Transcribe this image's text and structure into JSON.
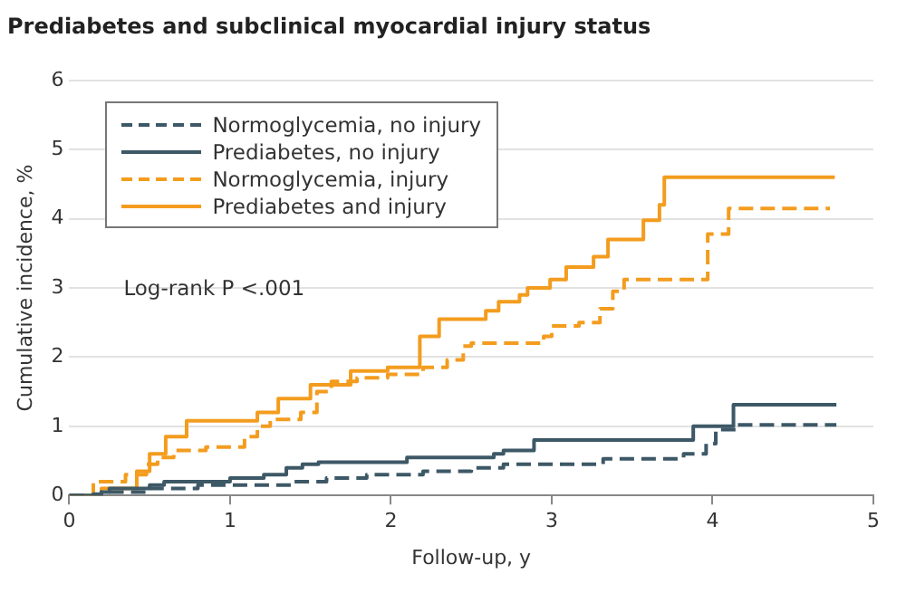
{
  "chart_data": {
    "type": "step",
    "title": "Prediabetes and subclinical myocardial injury status",
    "xlabel": "Follow-up, y",
    "ylabel": "Cumulative incidence, %",
    "xlim": [
      0,
      5
    ],
    "xticks": [
      0,
      1,
      2,
      3,
      4,
      5
    ],
    "ylim": [
      0,
      6
    ],
    "yticks": [
      0,
      1,
      2,
      3,
      4,
      5,
      6
    ],
    "grid": "y",
    "legend": "top left",
    "annotations": [
      "Log-rank P <.001"
    ],
    "series": [
      {
        "name": "Normoglycemia, no injury",
        "color": "#3d5866",
        "line_style": "dashed",
        "x": [
          0,
          0.15,
          0.2,
          0.5,
          0.8,
          1.4,
          1.6,
          1.85,
          2.2,
          2.5,
          2.7,
          3.32,
          3.82,
          3.96,
          4.02,
          4.15,
          4.77
        ],
        "values": [
          0,
          0.02,
          0.05,
          0.1,
          0.15,
          0.2,
          0.25,
          0.3,
          0.35,
          0.4,
          0.45,
          0.53,
          0.6,
          0.75,
          0.95,
          1.02,
          1.02
        ]
      },
      {
        "name": "Prediabetes, no injury",
        "color": "#3d5866",
        "line_style": "solid",
        "x": [
          0,
          0.2,
          0.25,
          0.5,
          0.59,
          1.0,
          1.21,
          1.35,
          1.45,
          1.55,
          2.1,
          2.64,
          2.7,
          2.89,
          3.88,
          4.13,
          4.77
        ],
        "values": [
          0,
          0.05,
          0.1,
          0.15,
          0.2,
          0.25,
          0.3,
          0.4,
          0.45,
          0.48,
          0.55,
          0.6,
          0.65,
          0.8,
          1.0,
          1.31,
          1.31
        ]
      },
      {
        "name": "Normoglycemia, injury",
        "color": "#f39c1e",
        "line_style": "dashed",
        "x": [
          0,
          0.15,
          0.35,
          0.48,
          0.55,
          0.65,
          0.85,
          1.09,
          1.17,
          1.25,
          1.44,
          1.54,
          1.63,
          1.79,
          1.98,
          2.2,
          2.35,
          2.45,
          2.5,
          2.95,
          3.0,
          3.17,
          3.3,
          3.38,
          3.45,
          3.97,
          4.1,
          4.73
        ],
        "values": [
          0,
          0.2,
          0.3,
          0.45,
          0.55,
          0.65,
          0.7,
          0.85,
          1.0,
          1.1,
          1.2,
          1.5,
          1.65,
          1.7,
          1.75,
          1.85,
          1.96,
          2.16,
          2.2,
          2.3,
          2.45,
          2.5,
          2.7,
          2.95,
          3.12,
          3.78,
          4.15,
          4.15
        ]
      },
      {
        "name": "Prediabetes and injury",
        "color": "#f39c1e",
        "line_style": "solid",
        "x": [
          0,
          0.2,
          0.42,
          0.5,
          0.6,
          0.73,
          1.17,
          1.3,
          1.5,
          1.75,
          1.98,
          2.18,
          2.3,
          2.59,
          2.67,
          2.8,
          2.85,
          2.99,
          3.09,
          3.26,
          3.35,
          3.57,
          3.67,
          3.7,
          4.76
        ],
        "values": [
          0,
          0.1,
          0.35,
          0.6,
          0.85,
          1.08,
          1.2,
          1.4,
          1.6,
          1.8,
          1.85,
          2.3,
          2.55,
          2.67,
          2.8,
          2.9,
          3.0,
          3.12,
          3.3,
          3.45,
          3.7,
          3.98,
          4.2,
          4.6,
          4.6
        ]
      }
    ]
  }
}
